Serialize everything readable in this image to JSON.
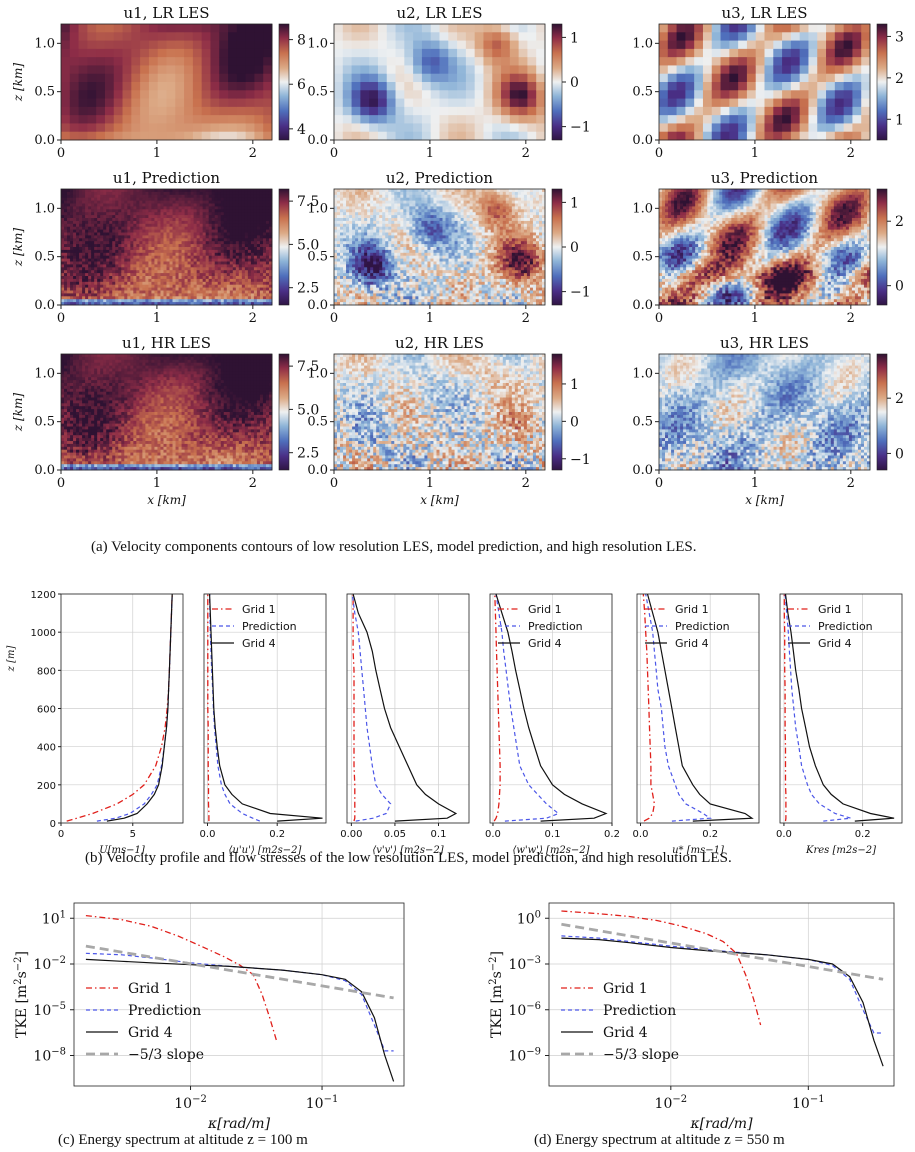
{
  "captions": {
    "a": "(a) Velocity components contours of low resolution LES, model prediction, and high resolution LES.",
    "b": "(b) Velocity profile and flow stresses of the low resolution LES, model prediction, and high resolution LES.",
    "c": "(c) Energy spectrum at altitude z = 100 m",
    "d": "(d) Energy spectrum at altitude z = 550 m"
  },
  "chart_data": [
    {
      "type": "heatmap",
      "panel": "a",
      "rows": [
        "LR LES",
        "Prediction",
        "HR LES"
      ],
      "cols": [
        "u1",
        "u2",
        "u3"
      ],
      "xlabel": "x [km]",
      "ylabel": "z [km]",
      "xticks": [
        "0",
        "1",
        "2"
      ],
      "yticks": [
        "0.0",
        "0.5",
        "1.0"
      ],
      "xlim": [
        0,
        2.2
      ],
      "ylim": [
        0,
        1.2
      ],
      "subplots": [
        {
          "title": "u1, LR LES",
          "cmap": "twilight_shifted",
          "vmin": 3.5,
          "vmax": 8.7,
          "cbar_ticks": [
            "8",
            "6",
            "4"
          ],
          "cbar_values": [
            8,
            6,
            4
          ],
          "resolution": "low"
        },
        {
          "title": "u2, LR LES",
          "cmap": "twilight_shifted",
          "vmin": -1.3,
          "vmax": 1.3,
          "cbar_ticks": [
            "1",
            "0",
            "−1"
          ],
          "cbar_values": [
            1,
            0,
            -1
          ],
          "resolution": "low"
        },
        {
          "title": "u3, LR LES",
          "cmap": "twilight_shifted",
          "vmin": 0.5,
          "vmax": 3.3,
          "cbar_ticks": [
            "3",
            "2",
            "1"
          ],
          "cbar_values": [
            3,
            2,
            1
          ],
          "resolution": "low"
        },
        {
          "title": "u1, Prediction",
          "cmap": "twilight_shifted",
          "vmin": 1.5,
          "vmax": 8.2,
          "cbar_ticks": [
            "7.5",
            "5.0",
            "2.5"
          ],
          "cbar_values": [
            7.5,
            5.0,
            2.5
          ],
          "resolution": "high"
        },
        {
          "title": "u2, Prediction",
          "cmap": "twilight_shifted",
          "vmin": -1.3,
          "vmax": 1.3,
          "cbar_ticks": [
            "1",
            "0",
            "−1"
          ],
          "cbar_values": [
            1,
            0,
            -1
          ],
          "resolution": "high"
        },
        {
          "title": "u3, Prediction",
          "cmap": "twilight_shifted",
          "vmin": -0.6,
          "vmax": 3.0,
          "cbar_ticks": [
            "2",
            "0"
          ],
          "cbar_values": [
            2,
            0
          ],
          "resolution": "high"
        },
        {
          "title": "u1, HR LES",
          "cmap": "twilight_shifted",
          "vmin": 1.5,
          "vmax": 8.2,
          "cbar_ticks": [
            "7.5",
            "5.0",
            "2.5"
          ],
          "cbar_values": [
            7.5,
            5.0,
            2.5
          ],
          "resolution": "high"
        },
        {
          "title": "u2, HR LES",
          "cmap": "twilight_shifted",
          "vmin": -1.3,
          "vmax": 1.8,
          "cbar_ticks": [
            "1",
            "0",
            "−1"
          ],
          "cbar_values": [
            1,
            0,
            -1
          ],
          "resolution": "high"
        },
        {
          "title": "u3, HR LES",
          "cmap": "twilight_shifted",
          "vmin": -0.6,
          "vmax": 3.6,
          "cbar_ticks": [
            "2",
            "0"
          ],
          "cbar_values": [
            2,
            0
          ],
          "resolution": "high"
        }
      ]
    },
    {
      "type": "line",
      "panel": "b",
      "ylabel": "z [m]",
      "ylim": [
        0,
        1200
      ],
      "yticks": [
        0,
        200,
        400,
        600,
        800,
        1000,
        1200
      ],
      "grid": true,
      "legend": [
        "Grid 1",
        "Prediction",
        "Grid 4"
      ],
      "z": [
        10,
        25,
        50,
        100,
        150,
        200,
        300,
        400,
        500,
        600,
        700,
        800,
        900,
        1000,
        1100,
        1200
      ],
      "subplots": [
        {
          "xlabel": "U[ms−1]",
          "xlim": [
            0,
            8.5
          ],
          "xticks": [
            0,
            5
          ],
          "legend": false,
          "series": [
            {
              "name": "Grid 1",
              "values": [
                0.4,
                1.1,
                2.2,
                3.9,
                5.0,
                5.8,
                6.6,
                7.0,
                7.25,
                7.4,
                7.5,
                7.55,
                7.6,
                7.65,
                7.7,
                7.75
              ]
            },
            {
              "name": "Prediction",
              "values": [
                2.5,
                3.8,
                4.8,
                5.8,
                6.3,
                6.7,
                7.0,
                7.2,
                7.35,
                7.45,
                7.5,
                7.55,
                7.6,
                7.65,
                7.7,
                7.75
              ]
            },
            {
              "name": "Grid 4",
              "values": [
                3.2,
                4.4,
                5.3,
                6.0,
                6.5,
                6.8,
                7.05,
                7.2,
                7.35,
                7.45,
                7.5,
                7.55,
                7.6,
                7.65,
                7.7,
                7.75
              ]
            }
          ]
        },
        {
          "xlabel": "⟨u'u'⟩ [m2s−2]",
          "xlim": [
            -0.01,
            0.34
          ],
          "xticks": [
            0.0,
            0.2
          ],
          "legend": true,
          "series": [
            {
              "name": "Grid 1",
              "values": [
                0.004,
                0.004,
                0.004,
                0.003,
                0.003,
                0.003,
                0.002,
                0.002,
                0.002,
                0.001,
                0.001,
                0.001,
                0.001,
                0.001,
                0.001,
                0.001
              ]
            },
            {
              "name": "Prediction",
              "values": [
                0.15,
                0.13,
                0.1,
                0.065,
                0.05,
                0.04,
                0.03,
                0.025,
                0.02,
                0.017,
                0.015,
                0.012,
                0.01,
                0.008,
                0.007,
                0.006
              ]
            },
            {
              "name": "Grid 4",
              "values": [
                0.2,
                0.33,
                0.18,
                0.1,
                0.07,
                0.05,
                0.035,
                0.028,
                0.022,
                0.018,
                0.016,
                0.014,
                0.012,
                0.01,
                0.008,
                0.006
              ]
            }
          ]
        },
        {
          "xlabel": "⟨v'v'⟩ [m2s−2]",
          "xlim": [
            -0.005,
            0.135
          ],
          "xticks": [
            0.0,
            0.05,
            0.1
          ],
          "legend": false,
          "series": [
            {
              "name": "Grid 1",
              "values": [
                0.003,
                0.004,
                0.004,
                0.004,
                0.004,
                0.004,
                0.003,
                0.003,
                0.003,
                0.003,
                0.003,
                0.003,
                0.002,
                0.002,
                0.002,
                0.002
              ]
            },
            {
              "name": "Prediction",
              "values": [
                0.005,
                0.025,
                0.04,
                0.045,
                0.035,
                0.028,
                0.024,
                0.021,
                0.018,
                0.016,
                0.014,
                0.012,
                0.01,
                0.008,
                0.004,
                0.001
              ]
            },
            {
              "name": "Grid 4",
              "values": [
                0.05,
                0.11,
                0.12,
                0.1,
                0.085,
                0.075,
                0.065,
                0.055,
                0.045,
                0.038,
                0.033,
                0.028,
                0.024,
                0.018,
                0.008,
                0.002
              ]
            }
          ]
        },
        {
          "xlabel": "⟨w'w'⟩ [m2s−2]",
          "xlim": [
            -0.005,
            0.2
          ],
          "xticks": [
            0.0,
            0.1,
            0.2
          ],
          "legend": true,
          "series": [
            {
              "name": "Grid 1",
              "values": [
                0.002,
                0.005,
                0.008,
                0.01,
                0.011,
                0.012,
                0.012,
                0.011,
                0.01,
                0.009,
                0.008,
                0.007,
                0.006,
                0.005,
                0.004,
                0.003
              ]
            },
            {
              "name": "Prediction",
              "values": [
                0.02,
                0.09,
                0.11,
                0.09,
                0.075,
                0.06,
                0.045,
                0.04,
                0.035,
                0.03,
                0.026,
                0.022,
                0.018,
                0.015,
                0.01,
                0.005
              ]
            },
            {
              "name": "Grid 4",
              "values": [
                0.08,
                0.17,
                0.19,
                0.15,
                0.12,
                0.1,
                0.08,
                0.07,
                0.06,
                0.052,
                0.045,
                0.038,
                0.032,
                0.025,
                0.015,
                0.005
              ]
            }
          ]
        },
        {
          "xlabel": "u* [ms−1]",
          "xlim": [
            -0.01,
            0.34
          ],
          "xticks": [
            0.0,
            0.2
          ],
          "legend": true,
          "series": [
            {
              "name": "Grid 1",
              "values": [
                0.01,
                0.025,
                0.035,
                0.04,
                0.035,
                0.03,
                0.03,
                0.028,
                0.026,
                0.024,
                0.022,
                0.02,
                0.018,
                0.015,
                0.012,
                0.008
              ]
            },
            {
              "name": "Prediction",
              "values": [
                0.09,
                0.2,
                0.18,
                0.13,
                0.11,
                0.1,
                0.08,
                0.07,
                0.065,
                0.06,
                0.05,
                0.045,
                0.04,
                0.035,
                0.025,
                0.015
              ]
            },
            {
              "name": "Grid 4",
              "values": [
                0.15,
                0.32,
                0.3,
                0.2,
                0.17,
                0.15,
                0.12,
                0.11,
                0.1,
                0.09,
                0.08,
                0.07,
                0.06,
                0.05,
                0.035,
                0.02
              ]
            }
          ]
        },
        {
          "xlabel": "Kres [m2s−2]",
          "xlim": [
            -0.01,
            0.3
          ],
          "xticks": [
            0.0,
            0.2
          ],
          "legend": true,
          "series": [
            {
              "name": "Grid 1",
              "values": [
                0.004,
                0.005,
                0.005,
                0.005,
                0.005,
                0.004,
                0.004,
                0.004,
                0.003,
                0.003,
                0.003,
                0.002,
                0.002,
                0.002,
                0.001,
                0.001
              ]
            },
            {
              "name": "Prediction",
              "values": [
                0.1,
                0.17,
                0.13,
                0.09,
                0.07,
                0.06,
                0.045,
                0.038,
                0.03,
                0.025,
                0.02,
                0.017,
                0.014,
                0.011,
                0.007,
                0.003
              ]
            },
            {
              "name": "Grid 4",
              "values": [
                0.18,
                0.28,
                0.22,
                0.15,
                0.12,
                0.1,
                0.08,
                0.065,
                0.055,
                0.045,
                0.038,
                0.03,
                0.024,
                0.018,
                0.01,
                0.004
              ]
            }
          ]
        }
      ]
    },
    {
      "type": "line",
      "panel": "c",
      "xscale": "log",
      "yscale": "log",
      "xlabel": "κ[rad/m]",
      "ylabel": "TKE [m2s−2]",
      "xlim": [
        0.0013,
        0.42
      ],
      "ylim": [
        1e-10,
        100.0
      ],
      "yticks": [
        "10^1",
        "10^-2",
        "10^-5",
        "10^-8"
      ],
      "xticks": [
        "10^-2",
        "10^-1"
      ],
      "grid": true,
      "legend": "lower-left",
      "series": [
        {
          "name": "Grid 1",
          "x": [
            0.0016,
            0.003,
            0.005,
            0.008,
            0.012,
            0.018,
            0.024,
            0.03,
            0.035,
            0.04,
            0.045
          ],
          "y": [
            15,
            8,
            3,
            0.7,
            0.15,
            0.03,
            0.008,
            0.002,
            0.0001,
            3e-06,
            1e-07
          ]
        },
        {
          "name": "Prediction",
          "x": [
            0.0016,
            0.003,
            0.005,
            0.01,
            0.02,
            0.05,
            0.1,
            0.15,
            0.2,
            0.25,
            0.3,
            0.35
          ],
          "y": [
            0.05,
            0.04,
            0.025,
            0.012,
            0.007,
            0.004,
            0.002,
            0.0008,
            0.0001,
            1e-06,
            2e-08,
            2e-08
          ]
        },
        {
          "name": "Grid 4",
          "x": [
            0.0016,
            0.003,
            0.005,
            0.01,
            0.02,
            0.05,
            0.1,
            0.15,
            0.2,
            0.25,
            0.3,
            0.35
          ],
          "y": [
            0.02,
            0.015,
            0.012,
            0.009,
            0.007,
            0.004,
            0.002,
            0.001,
            0.00015,
            3e-06,
            1e-08,
            2e-10
          ]
        },
        {
          "name": "−5/3 slope",
          "x": [
            0.0016,
            0.35
          ],
          "y": [
            0.15,
            6e-05
          ]
        }
      ]
    },
    {
      "type": "line",
      "panel": "d",
      "xscale": "log",
      "yscale": "log",
      "xlabel": "κ[rad/m]",
      "ylabel": "TKE [m2s−2]",
      "xlim": [
        0.0013,
        0.42
      ],
      "ylim": [
        1e-11,
        10.0
      ],
      "yticks": [
        "10^0",
        "10^-3",
        "10^-6",
        "10^-9"
      ],
      "xticks": [
        "10^-2",
        "10^-1"
      ],
      "grid": true,
      "legend": "lower-left",
      "series": [
        {
          "name": "Grid 1",
          "x": [
            0.0016,
            0.003,
            0.005,
            0.008,
            0.012,
            0.018,
            0.024,
            0.03,
            0.035,
            0.04,
            0.045
          ],
          "y": [
            3,
            2,
            1.3,
            0.7,
            0.3,
            0.1,
            0.03,
            0.005,
            0.0002,
            5e-06,
            1e-07
          ]
        },
        {
          "name": "Prediction",
          "x": [
            0.0016,
            0.003,
            0.005,
            0.01,
            0.02,
            0.05,
            0.1,
            0.15,
            0.2,
            0.25,
            0.3,
            0.35
          ],
          "y": [
            0.07,
            0.05,
            0.03,
            0.015,
            0.008,
            0.004,
            0.002,
            0.0008,
            0.0001,
            1e-06,
            3e-08,
            3e-08
          ]
        },
        {
          "name": "Grid 4",
          "x": [
            0.0016,
            0.003,
            0.005,
            0.01,
            0.02,
            0.05,
            0.1,
            0.15,
            0.2,
            0.25,
            0.3,
            0.35
          ],
          "y": [
            0.05,
            0.04,
            0.025,
            0.012,
            0.007,
            0.004,
            0.002,
            0.001,
            0.00015,
            3e-06,
            1e-08,
            2e-10
          ]
        },
        {
          "name": "−5/3 slope",
          "x": [
            0.0016,
            0.35
          ],
          "y": [
            0.4,
            0.0001
          ]
        }
      ]
    }
  ],
  "colors": {
    "grid1": "#e0201b",
    "prediction": "#4b56e8",
    "grid4": "#111111",
    "slope": "#a8a8a8",
    "gridline": "#cfcfcf"
  }
}
